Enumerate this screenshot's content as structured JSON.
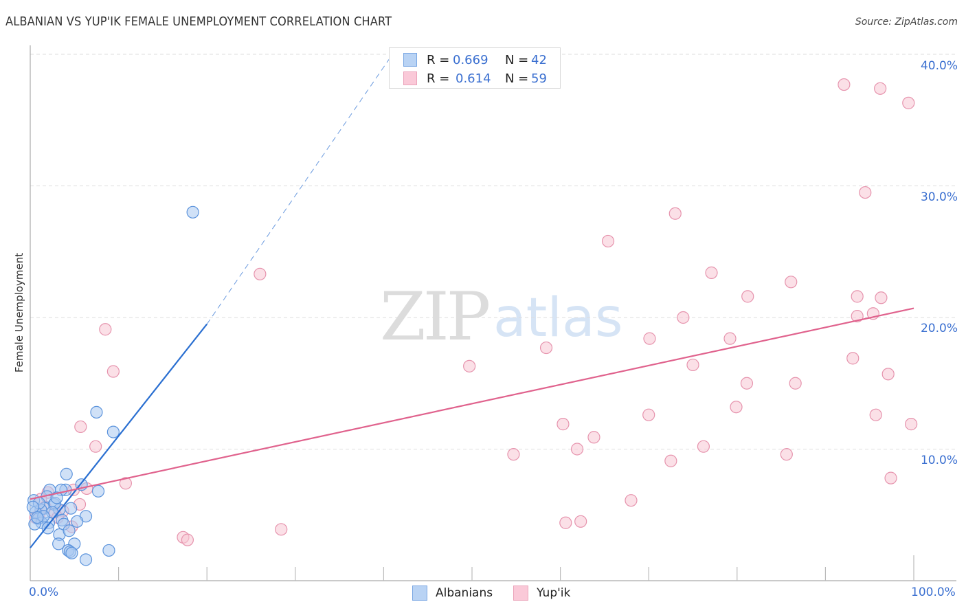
{
  "header": {
    "title": "ALBANIAN VS YUP'IK FEMALE UNEMPLOYMENT CORRELATION CHART",
    "source": "Source: ZipAtlas.com"
  },
  "watermark": {
    "zip": "ZIP",
    "atlas": "atlas"
  },
  "legend": {
    "albanians": {
      "r_label": "R =",
      "r_value": "0.669",
      "n_label": "N =",
      "n_value": "42"
    },
    "yupik": {
      "r_label": "R =",
      "r_value": "0.614",
      "n_label": "N =",
      "n_value": "59"
    }
  },
  "bottom_legend": {
    "albanians": "Albanians",
    "yupik": "Yup'ik"
  },
  "colors": {
    "albanians_fill": "#a9c8f0",
    "albanians_stroke": "#5b93dc",
    "albanians_line": "#2a6fd1",
    "yupik_fill": "#f8c6d4",
    "yupik_stroke": "#e693ad",
    "yupik_line": "#e0628d",
    "tick_label": "#3a6fd0",
    "grid": "#dddddd"
  },
  "axes": {
    "y_label": "Female Unemployment",
    "y_ticks": [
      "10.0%",
      "20.0%",
      "30.0%",
      "40.0%"
    ],
    "x_ticks": [
      "0.0%",
      "100.0%"
    ]
  },
  "chart_data": {
    "type": "scatter",
    "title": "ALBANIAN VS YUP'IK FEMALE UNEMPLOYMENT CORRELATION CHART",
    "xlabel": "",
    "ylabel": "Female Unemployment",
    "xlim": [
      0,
      100
    ],
    "ylim": [
      0,
      40
    ],
    "x_tick_labels": [
      "0.0%",
      "100.0%"
    ],
    "y_tick_labels": [
      "10.0%",
      "20.0%",
      "30.0%",
      "40.0%"
    ],
    "grid": "horizontal dashed",
    "legend_position": "top-center and bottom",
    "series": [
      {
        "name": "Albanians",
        "R": 0.669,
        "N": 42,
        "points": [
          [
            18.4,
            28.0
          ],
          [
            7.5,
            12.8
          ],
          [
            9.4,
            11.3
          ],
          [
            4.1,
            8.1
          ],
          [
            5.8,
            7.3
          ],
          [
            7.7,
            6.8
          ],
          [
            4.0,
            6.9
          ],
          [
            3.5,
            6.9
          ],
          [
            2.2,
            6.9
          ],
          [
            1.9,
            6.4
          ],
          [
            0.4,
            6.1
          ],
          [
            2.7,
            5.8
          ],
          [
            1.6,
            5.5
          ],
          [
            3.3,
            5.4
          ],
          [
            1.2,
            5.4
          ],
          [
            0.6,
            5.2
          ],
          [
            0.9,
            4.7
          ],
          [
            3.6,
            4.6
          ],
          [
            6.3,
            4.9
          ],
          [
            4.6,
            5.5
          ],
          [
            2.1,
            4.4
          ],
          [
            1.3,
            4.4
          ],
          [
            0.5,
            4.3
          ],
          [
            3.8,
            4.3
          ],
          [
            2.0,
            4.0
          ],
          [
            3.3,
            3.5
          ],
          [
            3.2,
            2.8
          ],
          [
            5.0,
            2.8
          ],
          [
            4.3,
            2.3
          ],
          [
            4.5,
            2.2
          ],
          [
            4.7,
            2.1
          ],
          [
            6.3,
            1.6
          ],
          [
            8.9,
            2.3
          ],
          [
            2.8,
            5.9
          ],
          [
            1.0,
            5.9
          ],
          [
            0.3,
            5.6
          ],
          [
            2.5,
            5.2
          ],
          [
            1.5,
            4.9
          ],
          [
            0.8,
            4.8
          ],
          [
            4.4,
            3.8
          ],
          [
            3.0,
            6.3
          ],
          [
            5.3,
            4.5
          ]
        ],
        "trendline": {
          "x0": 0,
          "y0": 2.5,
          "x1": 20,
          "y1": 19.5,
          "dashed_extension_to": [
            41,
            40
          ]
        }
      },
      {
        "name": "Yup'ik",
        "R": 0.614,
        "N": 59,
        "points": [
          [
            92.1,
            37.7
          ],
          [
            96.2,
            37.4
          ],
          [
            99.4,
            36.3
          ],
          [
            94.5,
            29.5
          ],
          [
            73.0,
            27.9
          ],
          [
            65.4,
            25.8
          ],
          [
            26.0,
            23.3
          ],
          [
            77.1,
            23.4
          ],
          [
            86.1,
            22.7
          ],
          [
            81.2,
            21.6
          ],
          [
            93.6,
            21.6
          ],
          [
            96.3,
            21.5
          ],
          [
            73.9,
            20.0
          ],
          [
            93.6,
            20.1
          ],
          [
            95.4,
            20.3
          ],
          [
            8.5,
            19.1
          ],
          [
            70.1,
            18.4
          ],
          [
            79.2,
            18.4
          ],
          [
            58.4,
            17.7
          ],
          [
            75.0,
            16.4
          ],
          [
            93.1,
            16.9
          ],
          [
            49.7,
            16.3
          ],
          [
            9.4,
            15.9
          ],
          [
            81.1,
            15.0
          ],
          [
            86.6,
            15.0
          ],
          [
            97.1,
            15.7
          ],
          [
            79.9,
            13.2
          ],
          [
            70.0,
            12.6
          ],
          [
            95.7,
            12.6
          ],
          [
            99.7,
            11.9
          ],
          [
            60.3,
            11.9
          ],
          [
            63.8,
            10.9
          ],
          [
            5.7,
            11.7
          ],
          [
            7.4,
            10.2
          ],
          [
            76.2,
            10.2
          ],
          [
            61.9,
            10.0
          ],
          [
            54.7,
            9.6
          ],
          [
            85.6,
            9.6
          ],
          [
            72.5,
            9.1
          ],
          [
            97.4,
            7.8
          ],
          [
            10.8,
            7.4
          ],
          [
            68.0,
            6.1
          ],
          [
            4.9,
            6.9
          ],
          [
            6.4,
            7.0
          ],
          [
            2.0,
            6.7
          ],
          [
            1.2,
            6.2
          ],
          [
            2.8,
            5.2
          ],
          [
            5.6,
            5.8
          ],
          [
            0.6,
            4.8
          ],
          [
            4.7,
            4.1
          ],
          [
            28.4,
            3.9
          ],
          [
            17.3,
            3.3
          ],
          [
            17.8,
            3.1
          ],
          [
            60.6,
            4.4
          ],
          [
            62.3,
            4.5
          ],
          [
            3.7,
            5.3
          ],
          [
            1.7,
            5.6
          ],
          [
            3.1,
            4.8
          ],
          [
            1.0,
            5.0
          ]
        ],
        "trendline": {
          "x0": 0,
          "y0": 6.2,
          "x1": 100,
          "y1": 20.7
        }
      }
    ]
  }
}
